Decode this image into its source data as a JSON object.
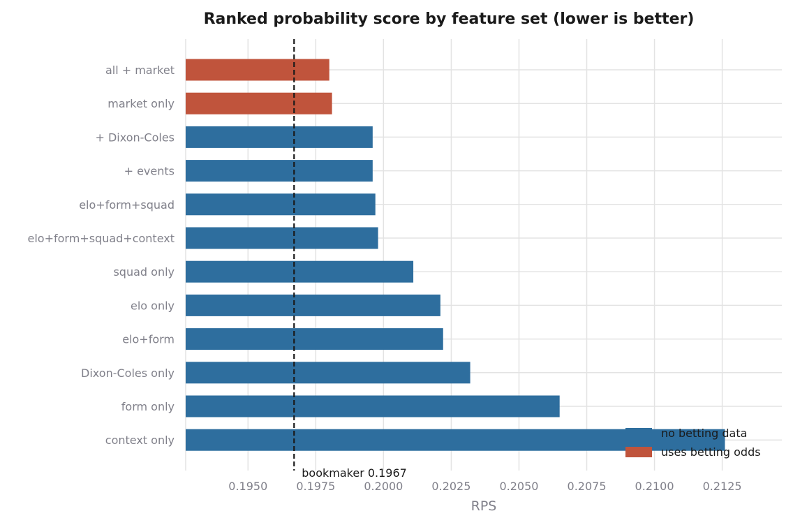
{
  "chart_data": {
    "type": "bar",
    "orientation": "horizontal",
    "title": "Ranked probability score by feature set (lower is better)",
    "xlabel": "RPS",
    "ylabel": "",
    "xlim": [
      0.1927,
      0.2147
    ],
    "xticks": [
      "0.1950",
      "0.1975",
      "0.2000",
      "0.2025",
      "0.2050",
      "0.2075",
      "0.2100",
      "0.2125"
    ],
    "xtick_values": [
      0.195,
      0.1975,
      0.2,
      0.2025,
      0.205,
      0.2075,
      0.21,
      0.2125
    ],
    "grid": true,
    "categories": [
      "all + market",
      "market only",
      "+ Dixon-Coles",
      "+ events",
      "elo+form+squad",
      "elo+form+squad+context",
      "squad only",
      "elo only",
      "elo+form",
      "Dixon-Coles only",
      "form only",
      "context only"
    ],
    "values": [
      0.198,
      0.1981,
      0.1996,
      0.1996,
      0.1997,
      0.1998,
      0.2011,
      0.2021,
      0.2022,
      0.2032,
      0.2065,
      0.2126
    ],
    "groups": [
      "betting",
      "betting",
      "nobet",
      "nobet",
      "nobet",
      "nobet",
      "nobet",
      "nobet",
      "nobet",
      "nobet",
      "nobet",
      "nobet"
    ],
    "reference_line": {
      "value": 0.1967,
      "label": "bookmaker 0.1967",
      "style": "dashed"
    },
    "legend": {
      "placement": "bottom-right",
      "entries": [
        {
          "key": "nobet",
          "label": "no betting data",
          "color": "#2e6e9e"
        },
        {
          "key": "betting",
          "label": "uses betting odds",
          "color": "#c0543c"
        }
      ]
    }
  }
}
